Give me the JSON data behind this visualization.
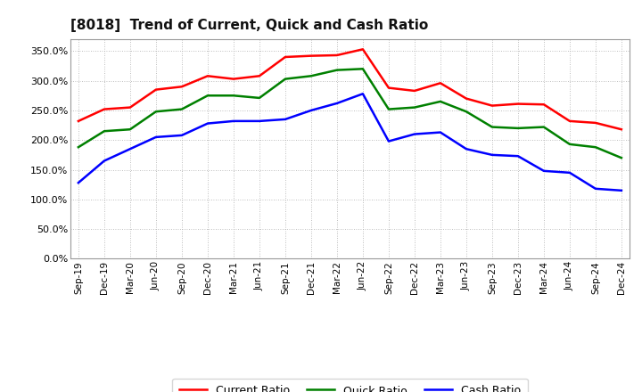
{
  "title": "[8018]  Trend of Current, Quick and Cash Ratio",
  "x_labels": [
    "Sep-19",
    "Dec-19",
    "Mar-20",
    "Jun-20",
    "Sep-20",
    "Dec-20",
    "Mar-21",
    "Jun-21",
    "Sep-21",
    "Dec-21",
    "Mar-22",
    "Jun-22",
    "Sep-22",
    "Dec-22",
    "Mar-23",
    "Jun-23",
    "Sep-23",
    "Dec-23",
    "Mar-24",
    "Jun-24",
    "Sep-24",
    "Dec-24"
  ],
  "current_ratio": [
    232,
    252,
    255,
    285,
    290,
    308,
    303,
    308,
    340,
    342,
    343,
    353,
    288,
    283,
    296,
    270,
    258,
    261,
    260,
    232,
    229,
    218
  ],
  "quick_ratio": [
    188,
    215,
    218,
    248,
    252,
    275,
    275,
    271,
    303,
    308,
    318,
    320,
    252,
    255,
    265,
    248,
    222,
    220,
    222,
    193,
    188,
    170
  ],
  "cash_ratio": [
    128,
    165,
    185,
    205,
    208,
    228,
    232,
    232,
    235,
    250,
    262,
    278,
    198,
    210,
    213,
    185,
    175,
    173,
    148,
    145,
    118,
    115
  ],
  "current_color": "#ff0000",
  "quick_color": "#008000",
  "cash_color": "#0000ff",
  "ylim": [
    0,
    370
  ],
  "yticks": [
    0,
    50,
    100,
    150,
    200,
    250,
    300,
    350
  ],
  "background_color": "#ffffff",
  "plot_bg_color": "#ffffff",
  "grid_color": "#aaaaaa",
  "legend_labels": [
    "Current Ratio",
    "Quick Ratio",
    "Cash Ratio"
  ],
  "line_width": 1.8
}
